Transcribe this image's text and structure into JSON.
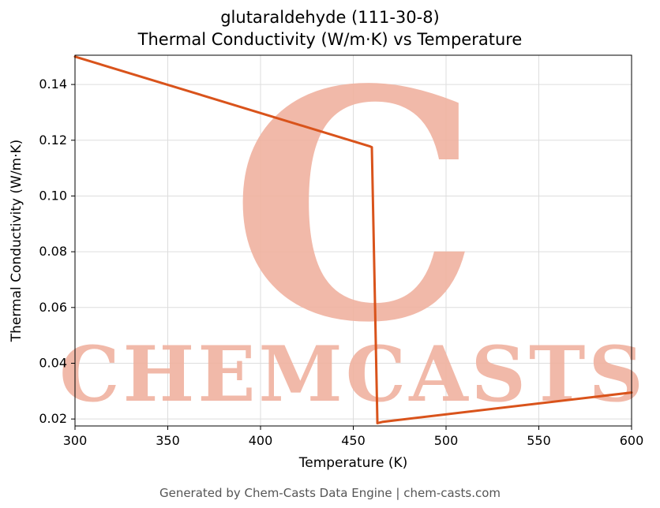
{
  "title_line1": "glutaraldehyde (111-30-8)",
  "title_line2": "Thermal Conductivity (W/m·K) vs Temperature",
  "footer": "Generated by Chem-Casts Data Engine | chem-casts.com",
  "watermark": {
    "big_letter": "C",
    "text": "CHEMCASTS",
    "color": "#f0b2a0"
  },
  "chart_data": {
    "type": "line",
    "title": "glutaraldehyde (111-30-8) Thermal Conductivity (W/m·K) vs Temperature",
    "xlabel": "Temperature (K)",
    "ylabel": "Thermal Conductivity (W/m·K)",
    "xlim": [
      300,
      600
    ],
    "ylim": [
      0.0175,
      0.1505
    ],
    "x_ticks": [
      300,
      350,
      400,
      450,
      500,
      550,
      600
    ],
    "y_ticks": [
      0.02,
      0.04,
      0.06,
      0.08,
      0.1,
      0.12,
      0.14
    ],
    "grid": true,
    "grid_color": "#dddddd",
    "line_color": "#d9531b",
    "line_width": 3,
    "series": [
      {
        "name": "thermal_conductivity",
        "points": [
          [
            300,
            0.15
          ],
          [
            459,
            0.1178
          ],
          [
            460,
            0.1175
          ],
          [
            463,
            0.0185
          ],
          [
            466,
            0.019
          ],
          [
            600,
            0.0295
          ]
        ]
      }
    ]
  }
}
